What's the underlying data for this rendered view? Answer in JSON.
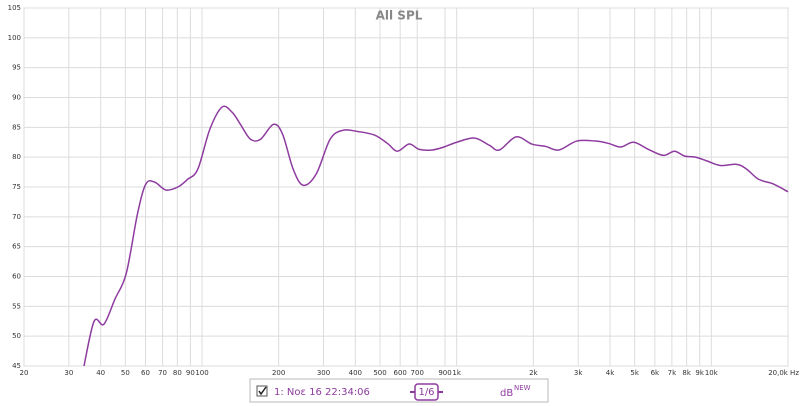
{
  "chart_data": {
    "type": "line",
    "title": "All SPL",
    "log_x": true,
    "grid": true,
    "xlim": [
      20,
      20000
    ],
    "ylim": [
      45,
      105
    ],
    "xticks": [
      20,
      30,
      40,
      50,
      60,
      70,
      80,
      90,
      100,
      200,
      300,
      400,
      500,
      600,
      700,
      900,
      {
        "value": 1000,
        "label": "1k"
      },
      {
        "value": 2000,
        "label": "2k"
      },
      {
        "value": 3000,
        "label": "3k"
      },
      {
        "value": 4000,
        "label": "4k"
      },
      {
        "value": 5000,
        "label": "5k"
      },
      {
        "value": 6000,
        "label": "6k"
      },
      {
        "value": 7000,
        "label": "7k"
      },
      {
        "value": 8000,
        "label": "8k"
      },
      {
        "value": 9000,
        "label": "9k"
      },
      {
        "value": 10000,
        "label": "10k"
      },
      {
        "value": 20000,
        "label": "20,0k Hz"
      }
    ],
    "yticks": [
      45,
      50,
      55,
      60,
      65,
      70,
      75,
      80,
      85,
      90,
      95,
      100,
      105
    ],
    "x": [
      34.4,
      37.7,
      41.2,
      45.5,
      50.4,
      55.8,
      60.2,
      65.3,
      72.1,
      80.4,
      87.9,
      96.3,
      107.4,
      119.9,
      131.5,
      141.5,
      155,
      169.8,
      190.7,
      207,
      228,
      249.6,
      281,
      318.5,
      357.6,
      408.6,
      476,
      535,
      585,
      651,
      713,
      801,
      891,
      1000,
      1176,
      1343,
      1471,
      1711,
      1973,
      2239,
      2520,
      2963,
      3512,
      3951,
      4404,
      4950,
      5666,
      6484,
      7163,
      7842,
      8661,
      9566,
      10860,
      12560,
      13750,
      15330,
      17550,
      20000
    ],
    "series": [
      {
        "name": "1: Νοε 16 22:34:06",
        "color": "#8e3b9f",
        "values": [
          45,
          52.5,
          52,
          56.2,
          60.5,
          70.5,
          75.5,
          75.8,
          74.5,
          75,
          76.3,
          78,
          84.7,
          88.4,
          87.5,
          85.5,
          83,
          83,
          85.5,
          83.9,
          78,
          75.3,
          77.2,
          83,
          84.5,
          84.3,
          83.7,
          82.3,
          81,
          82.2,
          81.3,
          81.2,
          81.7,
          82.5,
          83.2,
          82,
          81.2,
          83.4,
          82.2,
          81.8,
          81.2,
          82.7,
          82.7,
          82.3,
          81.7,
          82.5,
          81.3,
          80.3,
          81,
          80.2,
          80,
          79.4,
          78.6,
          78.8,
          78,
          76.3,
          75.5,
          74.2
        ]
      }
    ],
    "smoothing": "1/6",
    "unit": "dB",
    "unit_badge": "NEW"
  }
}
